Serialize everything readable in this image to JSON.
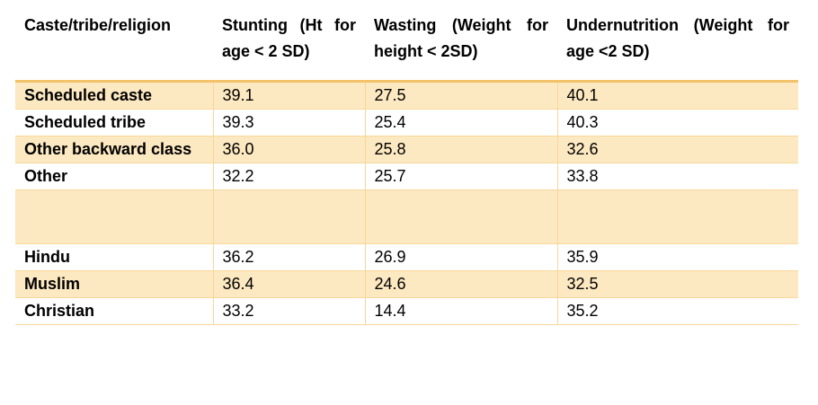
{
  "table": {
    "header": [
      "Caste/tribe/religion",
      "Stunting (Ht for age < 2 SD)",
      "Wasting (Weight for height < 2SD)",
      "Undernutrition (Weight for age <2 SD)"
    ],
    "groups": [
      [
        [
          "Scheduled caste",
          "39.1",
          "27.5",
          "40.1"
        ],
        [
          "Scheduled tribe",
          "39.3",
          "25.4",
          "40.3"
        ],
        [
          "Other backward class",
          "36.0",
          "25.8",
          "32.6"
        ],
        [
          "Other",
          "32.2",
          "25.7",
          "33.8"
        ]
      ],
      [
        [
          "Hindu",
          "36.2",
          "26.9",
          "35.9"
        ],
        [
          "Muslim",
          "36.4",
          "24.6",
          "32.5"
        ],
        [
          "Christian",
          "33.2",
          "14.4",
          "35.2"
        ]
      ]
    ]
  }
}
